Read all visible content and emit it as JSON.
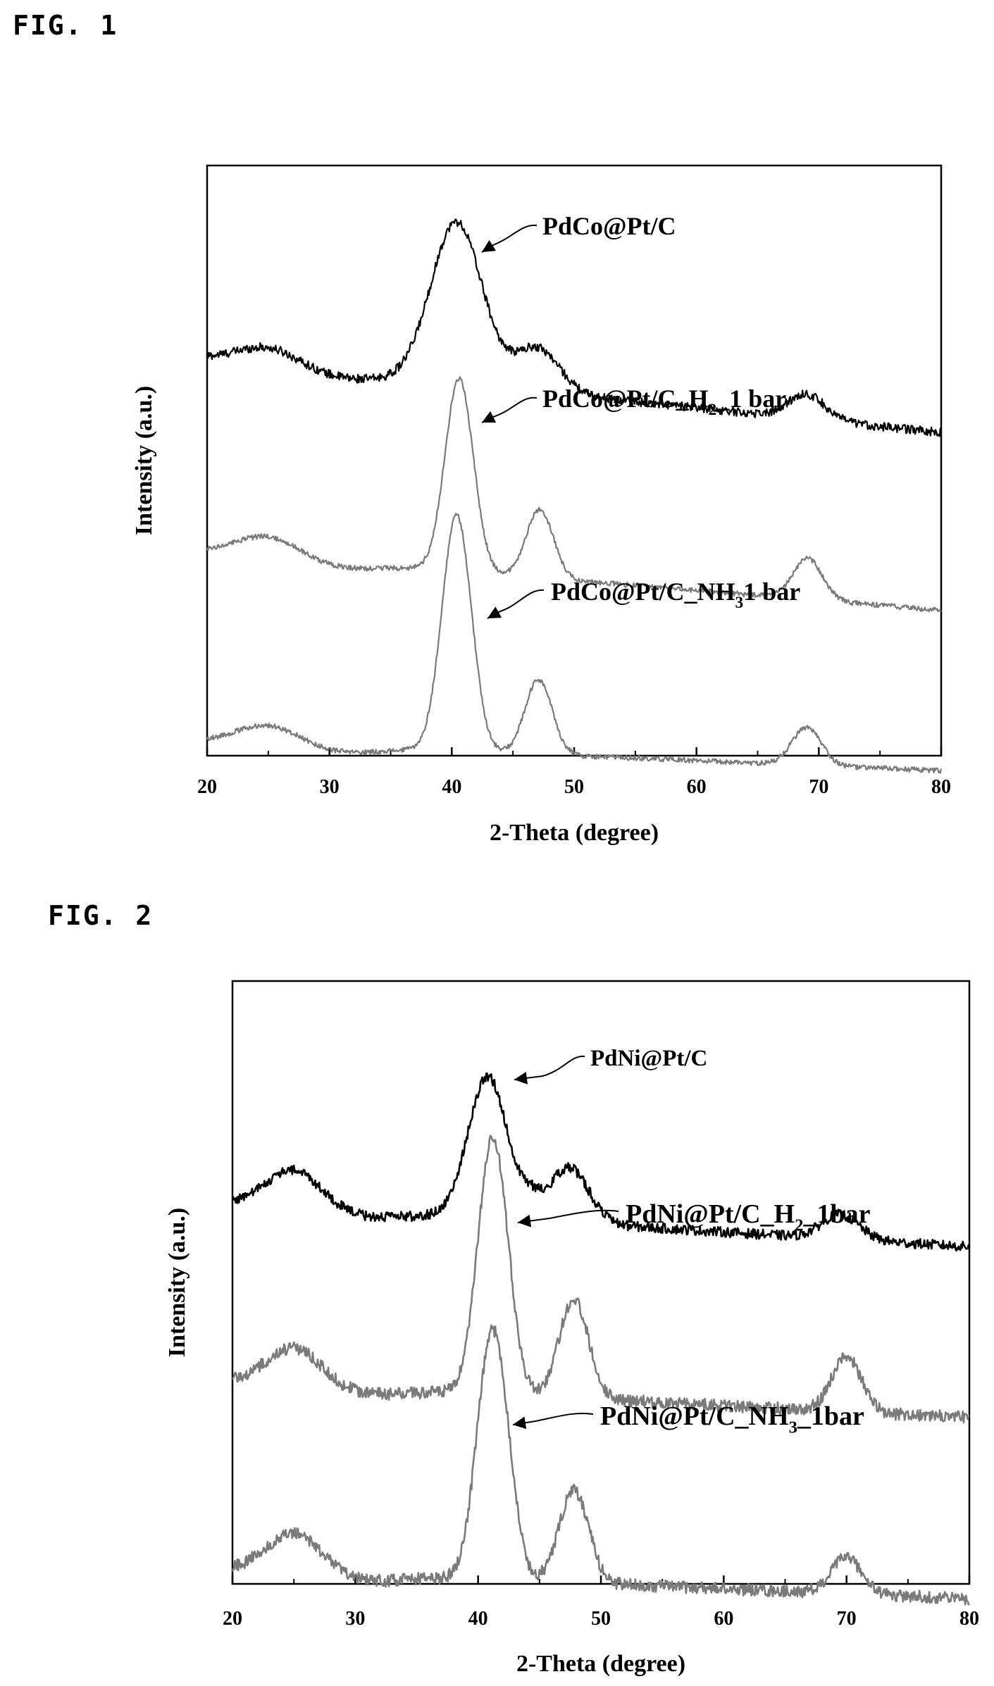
{
  "figures": [
    {
      "label": "FIG. 1"
    },
    {
      "label": "FIG. 2"
    }
  ],
  "chart_data": [
    {
      "type": "line",
      "title": "",
      "xlabel": "2-Theta (degree)",
      "ylabel": "Intensity (a.u.)",
      "xlim": [
        20,
        80
      ],
      "xticks": [
        20,
        30,
        40,
        50,
        60,
        70,
        80
      ],
      "yticks_shown": false,
      "grid": false,
      "legend": "none",
      "annotations": [
        {
          "main": "PdCo@Pt/C",
          "sub": "",
          "tail": ""
        },
        {
          "main": "PdCo@Pt/C_H",
          "sub": "2",
          "tail": "_1 bar"
        },
        {
          "main": "PdCo@Pt/C_NH",
          "sub": "3",
          "tail": "1 bar"
        }
      ],
      "series": [
        {
          "color": "#000000",
          "baseline": 3.2,
          "base_slope": -0.01,
          "peaks": [
            [
              25,
              0.14,
              2.5
            ],
            [
              40.4,
              1.3,
              2.1
            ],
            [
              47,
              0.35,
              1.8
            ],
            [
              69,
              0.2,
              1.5
            ]
          ],
          "noise": 0.035
        },
        {
          "color": "#7a7a7a",
          "baseline": 1.65,
          "base_slope": -0.008,
          "peaks": [
            [
              25,
              0.16,
              2.5
            ],
            [
              40.6,
              1.55,
              1.15
            ],
            [
              47.2,
              0.55,
              1.1
            ],
            [
              69.1,
              0.33,
              1.2
            ]
          ],
          "noise": 0.02
        },
        {
          "color": "#7a7a7a",
          "baseline": 0.12,
          "base_slope": -0.004,
          "peaks": [
            [
              25,
              0.15,
              2.5
            ],
            [
              40.4,
              1.9,
              1.2
            ],
            [
              47.1,
              0.6,
              1.1
            ],
            [
              69,
              0.3,
              1.2
            ]
          ],
          "noise": 0.02
        }
      ]
    },
    {
      "type": "line",
      "title": "",
      "xlabel": "2-Theta (degree)",
      "ylabel": "Intensity (a.u.)",
      "xlim": [
        20,
        80
      ],
      "xticks": [
        20,
        30,
        40,
        50,
        60,
        70,
        80
      ],
      "yticks_shown": false,
      "grid": false,
      "legend": "none",
      "annotations": [
        {
          "main": "PdNi@Pt/C",
          "sub": "",
          "tail": ""
        },
        {
          "main": "PdNi@Pt/C_H",
          "sub": "2",
          "tail": "_1bar"
        },
        {
          "main": "PdNi@Pt/C_NH",
          "sub": "3",
          "tail": "_1bar"
        }
      ],
      "series": [
        {
          "color": "#000000",
          "baseline": 3.1,
          "base_slope": -0.006,
          "peaks": [
            [
              25,
              0.3,
              2.2
            ],
            [
              40.8,
              1.15,
              1.6
            ],
            [
              44.3,
              0.12,
              0.8
            ],
            [
              47.4,
              0.45,
              1.6
            ],
            [
              69.5,
              0.2,
              1.5
            ]
          ],
          "noise": 0.04
        },
        {
          "color": "#7a7a7a",
          "baseline": 1.65,
          "base_slope": -0.005,
          "peaks": [
            [
              25,
              0.3,
              2.2
            ],
            [
              41.1,
              2.0,
              1.15
            ],
            [
              42.5,
              0.25,
              0.9
            ],
            [
              47.8,
              0.8,
              1.2
            ],
            [
              70,
              0.45,
              1.2
            ]
          ],
          "noise": 0.05
        },
        {
          "color": "#7a7a7a",
          "baseline": 0.12,
          "base_slope": -0.004,
          "peaks": [
            [
              25,
              0.32,
              2.2
            ],
            [
              41.1,
              1.95,
              1.2
            ],
            [
              42.5,
              0.25,
              0.9
            ],
            [
              47.8,
              0.75,
              1.2
            ],
            [
              70,
              0.3,
              1.2
            ]
          ],
          "noise": 0.05
        }
      ]
    }
  ]
}
